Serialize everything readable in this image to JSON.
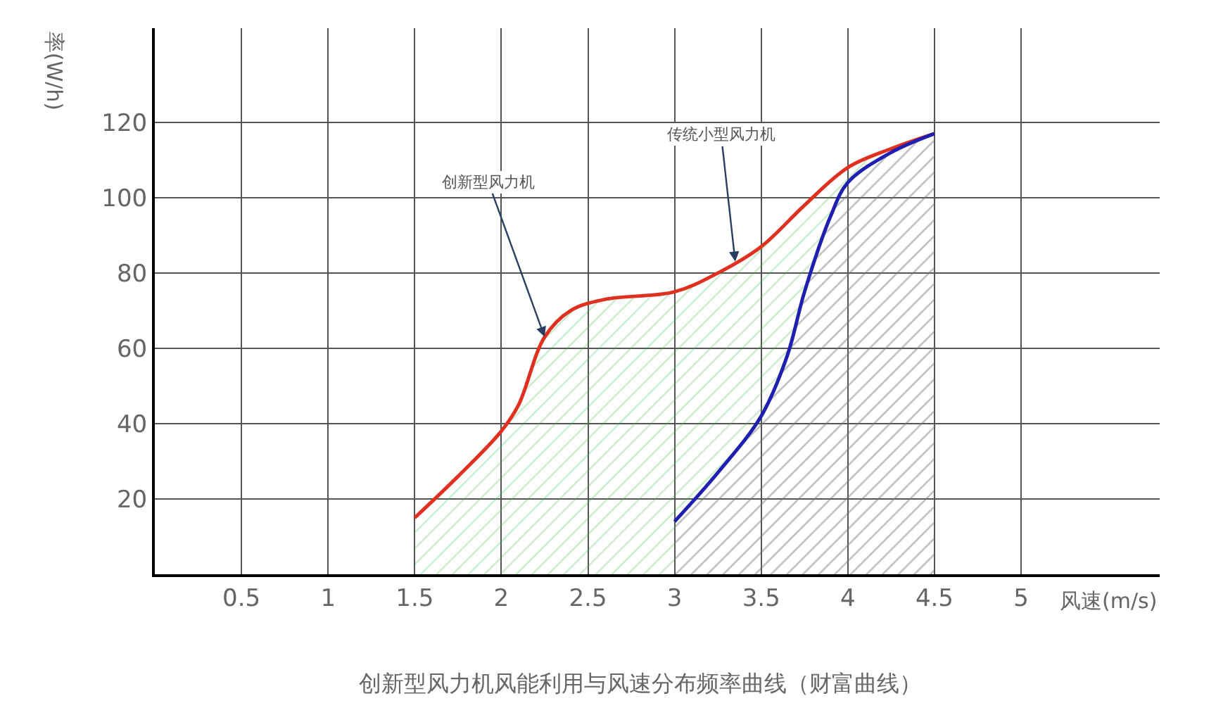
{
  "chart_data": {
    "type": "area",
    "xlabel": "风速(m/s)",
    "ylabel": "率(W/h)",
    "xlim": [
      0,
      5.8
    ],
    "ylim": [
      0,
      145
    ],
    "xticks": [
      0.5,
      1,
      1.5,
      2,
      2.5,
      3,
      3.5,
      4,
      4.5,
      5
    ],
    "yticks": [
      20,
      40,
      60,
      80,
      100,
      120
    ],
    "grid": true,
    "legend": false,
    "marker": "none",
    "line_style": "solid",
    "series": [
      {
        "color": "#e03020",
        "x": [
          1.5,
          1.75,
          2,
          2.1,
          2.25,
          2.4,
          2.6,
          3,
          3.25,
          3.5,
          3.75,
          4,
          4.25,
          4.5
        ],
        "values": [
          15,
          26,
          38,
          45,
          63,
          70,
          73,
          75,
          80,
          87,
          98,
          108,
          113,
          117
        ]
      },
      {
        "color": "#2020b0",
        "x": [
          3,
          3.25,
          3.5,
          3.65,
          3.75,
          3.9,
          4,
          4.25,
          4.5
        ],
        "values": [
          14,
          27,
          42,
          58,
          75,
          95,
          104,
          112,
          117
        ]
      }
    ],
    "annotations": [
      {
        "text": "创新型风力机",
        "x": 2.25,
        "y": 63
      },
      {
        "text": "传统小型风力机",
        "x": 3.35,
        "y": 83
      },
      "创新型风力机风能利用与风速分布频率曲线（财富曲线）"
    ]
  }
}
